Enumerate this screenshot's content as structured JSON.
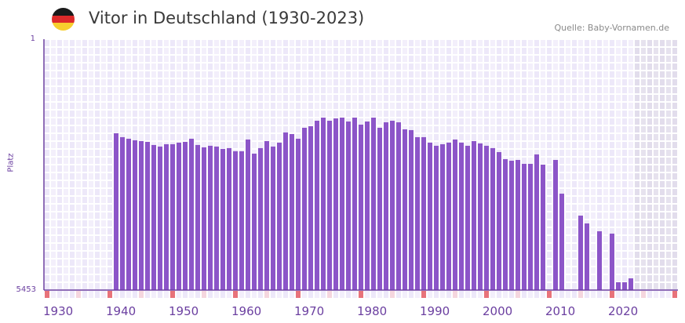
{
  "header": {
    "title": "Vitor in Deutschland (1930-2023)",
    "source": "Quelle: Baby-Vornamen.de",
    "flag_icon": "germany-flag-icon"
  },
  "colors": {
    "bar": "#8c55c8",
    "decade_marker": "#e8737a",
    "half_decade_marker": "#f5d6de",
    "axis": "#6b3fa0",
    "future_shade": "#e4e0ee"
  },
  "chart_data": {
    "type": "bar",
    "title": "Vitor in Deutschland (1930-2023)",
    "xlabel": "",
    "ylabel": "Platz",
    "y_inverted": true,
    "ylim": [
      1,
      5453
    ],
    "ytick_labels": [
      "1",
      "5453"
    ],
    "xlim": [
      1930,
      2030
    ],
    "xtick_labels": [
      "1930",
      "1940",
      "1950",
      "1960",
      "1970",
      "1980",
      "1990",
      "2000",
      "2010",
      "2020"
    ],
    "x": [
      1941,
      1942,
      1943,
      1944,
      1945,
      1946,
      1947,
      1948,
      1949,
      1950,
      1951,
      1952,
      1953,
      1954,
      1955,
      1956,
      1957,
      1958,
      1959,
      1960,
      1961,
      1962,
      1963,
      1964,
      1965,
      1966,
      1967,
      1968,
      1969,
      1970,
      1971,
      1972,
      1973,
      1974,
      1975,
      1976,
      1977,
      1978,
      1979,
      1980,
      1981,
      1982,
      1983,
      1984,
      1985,
      1986,
      1987,
      1988,
      1989,
      1990,
      1991,
      1992,
      1993,
      1994,
      1995,
      1996,
      1997,
      1998,
      1999,
      2000,
      2001,
      2002,
      2003,
      2004,
      2005,
      2006,
      2007,
      2008,
      2009,
      2010,
      2011,
      2012,
      2013,
      2014,
      2015,
      2016,
      2017,
      2018,
      2019,
      2020,
      2021,
      2022,
      2023
    ],
    "values": [
      2045,
      2130,
      2164,
      2198,
      2215,
      2232,
      2300,
      2334,
      2283,
      2283,
      2249,
      2232,
      2164,
      2300,
      2351,
      2317,
      2334,
      2385,
      2368,
      2436,
      2436,
      2181,
      2488,
      2368,
      2215,
      2334,
      2249,
      2028,
      2062,
      2164,
      1926,
      1892,
      1773,
      1705,
      1773,
      1722,
      1705,
      1790,
      1705,
      1858,
      1790,
      1705,
      1926,
      1807,
      1773,
      1807,
      1960,
      1977,
      2130,
      2130,
      2249,
      2317,
      2283,
      2249,
      2181,
      2249,
      2317,
      2215,
      2266,
      2317,
      2368,
      2454,
      2608,
      2642,
      2625,
      2710,
      2710,
      2505,
      2727,
      null,
      2625,
      3358,
      null,
      null,
      3835,
      4005,
      null,
      4175,
      null,
      4226,
      5283,
      5283,
      5198
    ],
    "future_from": 2024,
    "grid": true
  }
}
